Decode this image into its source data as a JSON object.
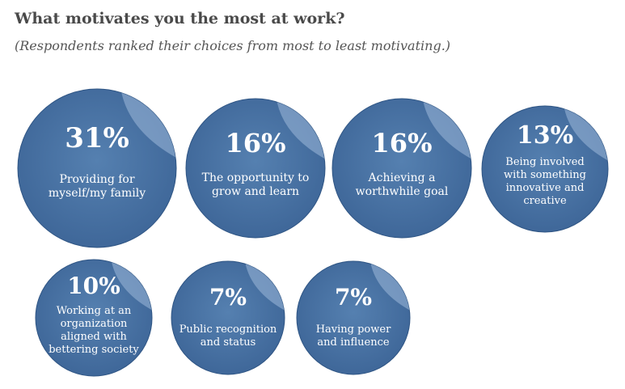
{
  "title": "What motivates you the most at work?",
  "subtitle": "(Respondents ranked their choices from most to least motivating.)",
  "colors": {
    "bubble": "#4a73a3",
    "bubble_edge": "#2f5584",
    "highlight": "#9fbadb",
    "text": "#ffffff"
  },
  "chart_data": {
    "type": "bubble",
    "title": "What motivates you the most at work?",
    "subtitle": "(Respondents ranked their choices from most to least motivating.)",
    "unit": "%",
    "items": [
      {
        "value": 31,
        "value_label": "31%",
        "label_lines": [
          "Providing for",
          "myself/my family"
        ]
      },
      {
        "value": 16,
        "value_label": "16%",
        "label_lines": [
          "The opportunity to",
          "grow and learn"
        ]
      },
      {
        "value": 16,
        "value_label": "16%",
        "label_lines": [
          "Achieving a",
          "worthwhile goal"
        ]
      },
      {
        "value": 13,
        "value_label": "13%",
        "label_lines": [
          "Being involved",
          "with something",
          "innovative and",
          "creative"
        ]
      },
      {
        "value": 10,
        "value_label": "10%",
        "label_lines": [
          "Working at an",
          "organization",
          "aligned with",
          "bettering society"
        ]
      },
      {
        "value": 7,
        "value_label": "7%",
        "label_lines": [
          "Public recognition",
          "and status"
        ]
      },
      {
        "value": 7,
        "value_label": "7%",
        "label_lines": [
          "Having power",
          "and influence"
        ]
      }
    ]
  }
}
